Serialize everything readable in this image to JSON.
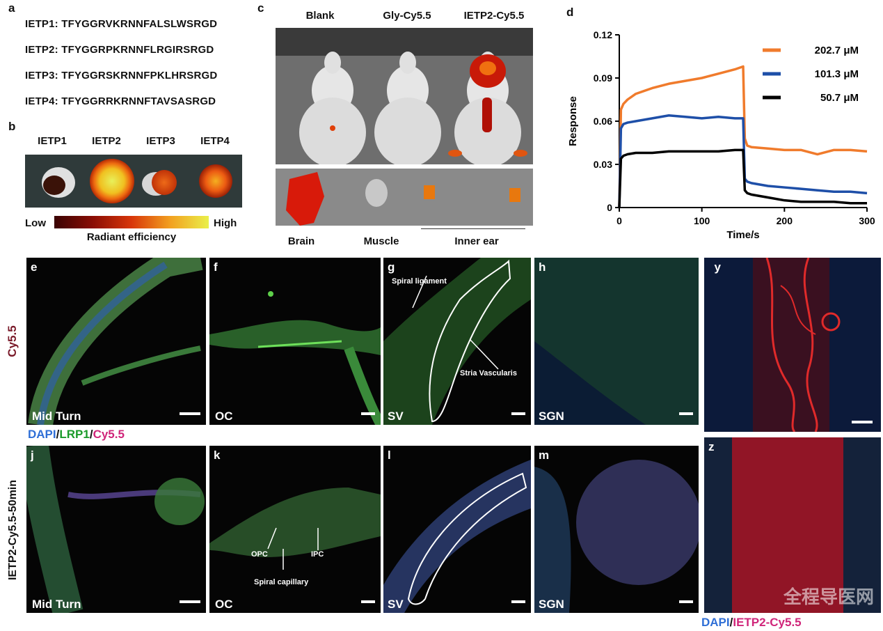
{
  "panel_a": {
    "label": "a",
    "sequences": [
      "IETP1: TFYGGRVKRNNFALSLWSRGD",
      "IETP2: TFYGGRPKRNNFLRGIRSRGD",
      "IETP3: TFYGGRSKRNNFPKLHRSRGD",
      "IETP4: TFYGGRRKRNNFTAVSASRGD"
    ]
  },
  "panel_b": {
    "label": "b",
    "columns": [
      "IETP1",
      "IETP2",
      "IETP3",
      "IETP4"
    ],
    "scale_low": "Low",
    "scale_high": "High",
    "scale_title": "Radiant efficiency"
  },
  "panel_c": {
    "label": "c",
    "columns": [
      "Blank",
      "Gly-Cy5.5",
      "IETP2-Cy5.5"
    ],
    "organs": [
      "Brain",
      "Muscle",
      "Inner ear"
    ]
  },
  "panel_d": {
    "label": "d"
  },
  "chart_data": {
    "type": "line",
    "xlabel": "Time/s",
    "ylabel": "Response",
    "xlim": [
      0,
      300
    ],
    "ylim": [
      0,
      0.12
    ],
    "xticks": [
      "0",
      "100",
      "200",
      "300"
    ],
    "yticks": [
      "0",
      "0.03",
      "0.06",
      "0.09",
      "0.12"
    ],
    "legend_position": "top-right",
    "series": [
      {
        "name": "202.7 μM",
        "color": "#f07b2c",
        "x": [
          0,
          2,
          5,
          10,
          20,
          40,
          60,
          80,
          100,
          120,
          140,
          150,
          152,
          155,
          160,
          180,
          200,
          220,
          240,
          260,
          280,
          300
        ],
        "y": [
          0,
          0.068,
          0.072,
          0.075,
          0.079,
          0.083,
          0.086,
          0.088,
          0.09,
          0.093,
          0.096,
          0.098,
          0.048,
          0.043,
          0.042,
          0.041,
          0.04,
          0.04,
          0.037,
          0.04,
          0.04,
          0.039
        ]
      },
      {
        "name": "101.3 μM",
        "color": "#1e4fa8",
        "x": [
          0,
          2,
          5,
          10,
          20,
          40,
          60,
          80,
          100,
          120,
          140,
          150,
          152,
          155,
          160,
          180,
          200,
          220,
          240,
          260,
          280,
          300
        ],
        "y": [
          0,
          0.055,
          0.058,
          0.059,
          0.06,
          0.062,
          0.064,
          0.063,
          0.062,
          0.063,
          0.062,
          0.062,
          0.02,
          0.018,
          0.017,
          0.015,
          0.014,
          0.013,
          0.012,
          0.011,
          0.011,
          0.01
        ]
      },
      {
        "name": "50.7 μM",
        "color": "#000000",
        "x": [
          0,
          2,
          5,
          10,
          20,
          40,
          60,
          80,
          100,
          120,
          140,
          150,
          152,
          155,
          160,
          180,
          200,
          220,
          240,
          260,
          280,
          300
        ],
        "y": [
          0,
          0.034,
          0.036,
          0.037,
          0.038,
          0.038,
          0.039,
          0.039,
          0.039,
          0.039,
          0.04,
          0.04,
          0.012,
          0.01,
          0.009,
          0.007,
          0.005,
          0.004,
          0.004,
          0.004,
          0.003,
          0.003
        ]
      }
    ]
  },
  "row_e_to_h": {
    "side_label": "Cy5.5",
    "panels": [
      {
        "label": "e",
        "caption": "Mid Turn"
      },
      {
        "label": "f",
        "caption": "OC"
      },
      {
        "label": "g",
        "caption": "SV",
        "annotation_1": "Spiral ligament",
        "annotation_2": "Stria Vascularis"
      },
      {
        "label": "h",
        "caption": "SGN"
      }
    ]
  },
  "stain_legend": {
    "dapi": "DAPI",
    "sep1": "/",
    "lrp1": "LRP1",
    "sep2": "/",
    "cy55": "Cy5.5",
    "colors": {
      "dapi": "#2f6fd6",
      "lrp1": "#1a9a2a",
      "cy55": "#d0257a"
    }
  },
  "row_j_to_m": {
    "side_label": "IETP2-Cy5.5-50min",
    "panels": [
      {
        "label": "j",
        "caption": "Mid Turn"
      },
      {
        "label": "k",
        "caption": "OC",
        "annotation_1": "OPC",
        "annotation_2": "IPC",
        "annotation_3": "Spiral capillary"
      },
      {
        "label": "l",
        "caption": "SV"
      },
      {
        "label": "m",
        "caption": "SGN"
      }
    ]
  },
  "panel_y": {
    "label": "y"
  },
  "panel_z": {
    "label": "z"
  },
  "bottom_legend": {
    "dapi": "DAPI",
    "sep": "/",
    "ietp": "IETP2-Cy5.5"
  },
  "watermark": "全程导医网"
}
